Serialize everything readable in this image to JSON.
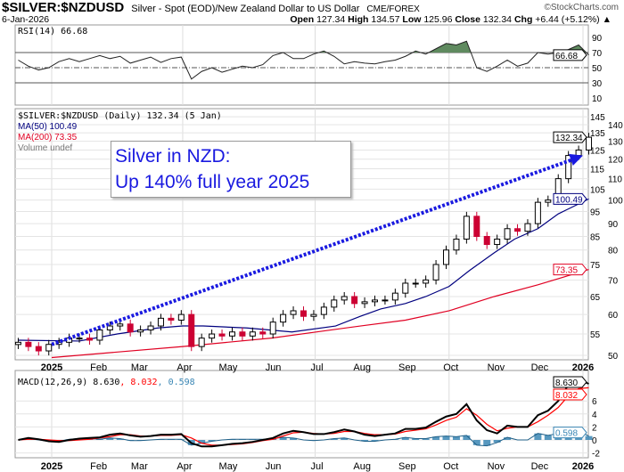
{
  "header": {
    "symbol": "$SILVER:$NZDUSD",
    "description": "Silver - Spot (EOD)/New Zealand Dollar to US Dollar",
    "source": "CME/FOREX",
    "copyright": "©StockCharts.com",
    "date": "6-Jan-2026",
    "open_label": "Open",
    "open": "127.34",
    "high_label": "High",
    "high": "134.57",
    "low_label": "Low",
    "low": "125.96",
    "close_label": "Close",
    "close": "132.34",
    "chg_label": "Chg",
    "chg": "+6.44 (+5.12%) ▲"
  },
  "annotation": {
    "line1": "Silver in NZD:",
    "line2": "Up 140% full year 2025",
    "color": "#1a1ae0"
  },
  "colors": {
    "up": "#000000",
    "down": "#cc0033",
    "ma50": "#00007f",
    "ma200": "#e00022",
    "rsi_fill": "#5f8a5f",
    "macd": "#000000",
    "signal": "#ff0000",
    "hist": "#3a86b4",
    "arrow": "#1a1ae0"
  },
  "chart_data": [
    {
      "type": "line",
      "panel": "rsi",
      "legend": "RSI(14) 66.68",
      "value_label": "66.68",
      "ylim": [
        0,
        100
      ],
      "yticks": [
        "90",
        "70",
        "50",
        "30",
        "10"
      ],
      "reference_lines": [
        70,
        50,
        30
      ],
      "values": [
        60,
        52,
        47,
        50,
        58,
        62,
        58,
        62,
        66,
        62,
        65,
        56,
        60,
        64,
        57,
        62,
        64,
        35,
        45,
        50,
        44,
        48,
        52,
        50,
        54,
        66,
        70,
        62,
        62,
        68,
        72,
        65,
        55,
        58,
        56,
        55,
        58,
        60,
        65,
        72,
        68,
        75,
        82,
        80,
        85,
        50,
        45,
        52,
        60,
        52,
        56,
        70,
        68,
        70,
        74,
        80,
        66.68
      ]
    },
    {
      "type": "candlestick",
      "panel": "price",
      "scale": "log",
      "legend": "$SILVER:$NZDUSD (Daily) 132.34 (5 Jan)",
      "ma50_legend": "MA(50) 100.49",
      "ma200_legend": "MA(200) 73.35",
      "volume_legend": "Volume undef",
      "last_label": "132.34",
      "ma50_label": "100.49",
      "ma200_label": "73.35",
      "ylim": [
        49,
        147
      ],
      "yticks": [
        "145",
        "140",
        "135",
        "130",
        "125",
        "120",
        "115",
        "110",
        "105",
        "100",
        "95",
        "90",
        "85",
        "80",
        "75",
        "70",
        "65",
        "60",
        "55",
        "50"
      ],
      "xticks": [
        "2025",
        "Feb",
        "Mar",
        "Apr",
        "May",
        "Jun",
        "Jul",
        "Aug",
        "Sep",
        "Oct",
        "Nov",
        "Dec",
        "2026"
      ],
      "dates": [
        "2024-12-09",
        "2024-12-16",
        "2024-12-23",
        "2024-12-30",
        "2025-01-06",
        "2025-01-13",
        "2025-01-20",
        "2025-01-27",
        "2025-02-03",
        "2025-02-10",
        "2025-02-17",
        "2025-02-24",
        "2025-03-03",
        "2025-03-10",
        "2025-03-17",
        "2025-03-24",
        "2025-03-31",
        "2025-04-07",
        "2025-04-14",
        "2025-04-21",
        "2025-04-28",
        "2025-05-05",
        "2025-05-12",
        "2025-05-19",
        "2025-05-26",
        "2025-06-02",
        "2025-06-09",
        "2025-06-16",
        "2025-06-23",
        "2025-06-30",
        "2025-07-07",
        "2025-07-14",
        "2025-07-21",
        "2025-07-28",
        "2025-08-04",
        "2025-08-11",
        "2025-08-18",
        "2025-08-25",
        "2025-09-01",
        "2025-09-08",
        "2025-09-15",
        "2025-09-22",
        "2025-09-29",
        "2025-10-06",
        "2025-10-13",
        "2025-10-20",
        "2025-10-27",
        "2025-11-03",
        "2025-11-10",
        "2025-11-17",
        "2025-11-24",
        "2025-12-01",
        "2025-12-08",
        "2025-12-15",
        "2025-12-22",
        "2025-12-29",
        "2026-01-05"
      ],
      "close": [
        53,
        52,
        51,
        52.5,
        53,
        54,
        54,
        53.5,
        56,
        57,
        57.5,
        55.5,
        56,
        57,
        59,
        58.5,
        60,
        52,
        54,
        55,
        54.5,
        55.5,
        54.5,
        55.5,
        55,
        58,
        60,
        61,
        59.5,
        60,
        62,
        64,
        65,
        63,
        63.5,
        64,
        64,
        66,
        69,
        69,
        70,
        75,
        80,
        84,
        93,
        85,
        82,
        84,
        88,
        87,
        90,
        99,
        100,
        110,
        122,
        125,
        132.34
      ],
      "ma50": [
        [
          "2024-12-09",
          53.5
        ],
        [
          "2025-01-20",
          53.3
        ],
        [
          "2025-02-15",
          55
        ],
        [
          "2025-03-15",
          56.5
        ],
        [
          "2025-04-01",
          57
        ],
        [
          "2025-04-15",
          57
        ],
        [
          "2025-05-15",
          56.5
        ],
        [
          "2025-06-15",
          55.5
        ],
        [
          "2025-07-15",
          57
        ],
        [
          "2025-08-01",
          59.5
        ],
        [
          "2025-08-15",
          61.5
        ],
        [
          "2025-09-01",
          63
        ],
        [
          "2025-09-15",
          65
        ],
        [
          "2025-10-01",
          68
        ],
        [
          "2025-10-15",
          73
        ],
        [
          "2025-11-01",
          79
        ],
        [
          "2025-11-15",
          84
        ],
        [
          "2025-12-01",
          88
        ],
        [
          "2025-12-15",
          94
        ],
        [
          "2026-01-05",
          100.49
        ]
      ],
      "ma200": [
        [
          "2025-01-01",
          49.5
        ],
        [
          "2025-04-01",
          52
        ],
        [
          "2025-06-01",
          54
        ],
        [
          "2025-08-01",
          57
        ],
        [
          "2025-09-01",
          58.5
        ],
        [
          "2025-10-01",
          61
        ],
        [
          "2025-11-01",
          65
        ],
        [
          "2025-12-01",
          68.5
        ],
        [
          "2026-01-05",
          73.35
        ]
      ],
      "trend_arrow": [
        [
          "2025-01-01",
          52.5
        ],
        [
          "2026-01-01",
          122
        ]
      ]
    },
    {
      "type": "line",
      "panel": "macd",
      "legend": "MACD(12,26,9) 8.630",
      "signal_legend": ", 8.032",
      "hist_legend": ", 0.598",
      "macd_label": "8.630",
      "signal_label": "8.032",
      "hist_label": "0.598",
      "ylim": [
        -3,
        11
      ],
      "yticks": [
        "6",
        "4",
        "2",
        "0",
        "-2"
      ],
      "macd": [
        0,
        0.3,
        0.1,
        -0.2,
        -0.3,
        0,
        0.2,
        0.3,
        0.4,
        0.8,
        1.0,
        0.7,
        0.5,
        0.6,
        0.8,
        0.8,
        0.9,
        -0.5,
        -1.0,
        -1.0,
        -0.8,
        -0.6,
        -0.5,
        -0.3,
        0,
        0.3,
        1.0,
        1.4,
        1.2,
        0.9,
        0.9,
        1.2,
        1.6,
        1.3,
        0.8,
        0.6,
        0.8,
        1.0,
        1.7,
        1.7,
        1.9,
        2.8,
        3.6,
        4.0,
        5.5,
        3.0,
        1.5,
        1.0,
        2.2,
        2.0,
        2.0,
        3.8,
        4.5,
        6.0,
        8.5,
        9.3,
        8.63
      ],
      "signal": [
        0,
        0.1,
        0.1,
        0,
        -0.1,
        -0.1,
        0,
        0.1,
        0.3,
        0.5,
        0.8,
        0.8,
        0.6,
        0.6,
        0.7,
        0.7,
        0.8,
        0.3,
        -0.5,
        -0.8,
        -0.8,
        -0.7,
        -0.6,
        -0.4,
        -0.1,
        0.1,
        0.6,
        1.1,
        1.2,
        1.0,
        0.9,
        1.0,
        1.3,
        1.3,
        1.0,
        0.8,
        0.8,
        0.9,
        1.3,
        1.5,
        1.7,
        2.3,
        3.0,
        3.5,
        4.8,
        3.8,
        2.4,
        1.4,
        1.8,
        2.0,
        2.0,
        2.8,
        3.8,
        5.0,
        6.8,
        7.9,
        8.032
      ]
    }
  ]
}
